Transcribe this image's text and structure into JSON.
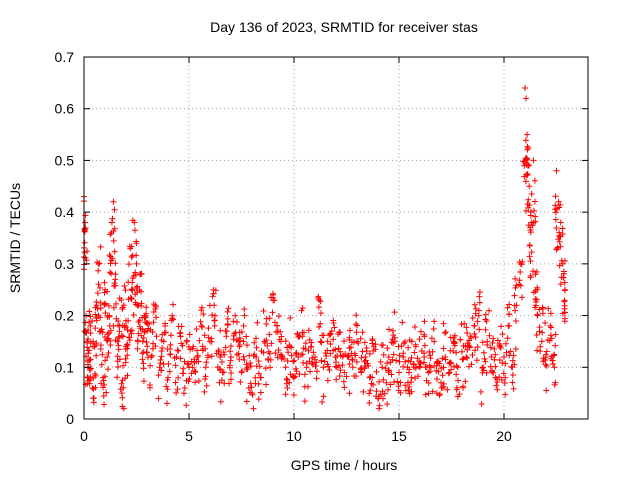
{
  "chart_data": {
    "type": "scatter",
    "title": "Day 136 of 2023, SRMTID for receiver stas",
    "xlabel": "GPS time / hours",
    "ylabel": "SRMTID / TECUs",
    "xlim": [
      0,
      24
    ],
    "ylim": [
      0,
      0.7
    ],
    "xticks": [
      0,
      5,
      10,
      15,
      20
    ],
    "xtick_labels": [
      "0",
      "5",
      "10",
      "15",
      "20"
    ],
    "yticks": [
      0,
      0.1,
      0.2,
      0.3,
      0.4,
      0.5,
      0.6,
      0.7
    ],
    "ytick_labels": [
      "0",
      "0.1",
      "0.2",
      "0.3",
      "0.4",
      "0.5",
      "0.6",
      "0.7"
    ],
    "grid": true,
    "marker": "+",
    "color": "#ff0000",
    "series": [
      {
        "name": "SRMTID",
        "x": [
          0.0,
          0.05,
          0.1,
          0.15,
          0.2,
          0.3,
          0.4,
          0.5,
          0.6,
          0.7,
          0.8,
          0.9,
          1.0,
          1.1,
          1.2,
          1.3,
          1.4,
          1.5,
          1.6,
          1.7,
          1.8,
          1.9,
          2.0,
          2.1,
          2.2,
          2.3,
          2.4,
          2.5,
          2.6,
          2.7,
          2.8,
          2.9,
          3.0,
          3.2,
          3.4,
          3.6,
          3.8,
          4.0,
          4.2,
          4.4,
          4.6,
          4.8,
          5.0,
          5.2,
          5.4,
          5.6,
          5.8,
          6.0,
          6.2,
          6.4,
          6.6,
          6.8,
          7.0,
          7.2,
          7.4,
          7.6,
          7.8,
          8.0,
          8.2,
          8.4,
          8.6,
          8.8,
          9.0,
          9.2,
          9.4,
          9.6,
          9.8,
          10.0,
          10.2,
          10.4,
          10.6,
          10.8,
          11.0,
          11.2,
          11.4,
          11.6,
          11.8,
          12.0,
          12.2,
          12.4,
          12.6,
          12.8,
          13.0,
          13.2,
          13.4,
          13.6,
          13.8,
          14.0,
          14.2,
          14.4,
          14.6,
          14.8,
          15.0,
          15.2,
          15.4,
          15.6,
          15.8,
          16.0,
          16.2,
          16.4,
          16.6,
          16.8,
          17.0,
          17.2,
          17.4,
          17.6,
          17.8,
          18.0,
          18.2,
          18.4,
          18.6,
          18.8,
          19.0,
          19.2,
          19.4,
          19.6,
          19.8,
          20.0,
          20.2,
          20.4,
          20.6,
          20.8,
          21.0,
          21.05,
          21.1,
          21.2,
          21.3,
          21.4,
          21.5,
          21.6,
          21.8,
          22.0,
          22.2,
          22.4,
          22.5,
          22.6,
          22.7,
          22.8,
          22.9
        ],
        "y": [
          0.43,
          0.38,
          0.2,
          0.15,
          0.1,
          0.18,
          0.06,
          0.14,
          0.22,
          0.3,
          0.17,
          0.08,
          0.25,
          0.12,
          0.2,
          0.36,
          0.42,
          0.28,
          0.15,
          0.18,
          0.05,
          0.22,
          0.14,
          0.19,
          0.33,
          0.25,
          0.38,
          0.3,
          0.22,
          0.28,
          0.15,
          0.2,
          0.17,
          0.12,
          0.22,
          0.1,
          0.15,
          0.08,
          0.2,
          0.12,
          0.16,
          0.06,
          0.1,
          0.14,
          0.12,
          0.18,
          0.1,
          0.15,
          0.22,
          0.13,
          0.09,
          0.17,
          0.12,
          0.2,
          0.14,
          0.18,
          0.1,
          0.05,
          0.12,
          0.08,
          0.15,
          0.13,
          0.24,
          0.18,
          0.12,
          0.1,
          0.14,
          0.08,
          0.12,
          0.16,
          0.1,
          0.14,
          0.12,
          0.23,
          0.1,
          0.15,
          0.17,
          0.11,
          0.13,
          0.09,
          0.12,
          0.1,
          0.15,
          0.09,
          0.12,
          0.08,
          0.14,
          0.04,
          0.1,
          0.07,
          0.11,
          0.15,
          0.09,
          0.12,
          0.1,
          0.08,
          0.14,
          0.1,
          0.12,
          0.09,
          0.13,
          0.11,
          0.07,
          0.12,
          0.09,
          0.15,
          0.1,
          0.13,
          0.12,
          0.16,
          0.18,
          0.2,
          0.1,
          0.15,
          0.12,
          0.08,
          0.14,
          0.12,
          0.18,
          0.1,
          0.22,
          0.3,
          0.64,
          0.62,
          0.55,
          0.45,
          0.38,
          0.5,
          0.28,
          0.2,
          0.15,
          0.12,
          0.18,
          0.1,
          0.48,
          0.42,
          0.38,
          0.3,
          0.25
        ],
        "scatter_spread": 0.05
      }
    ]
  }
}
